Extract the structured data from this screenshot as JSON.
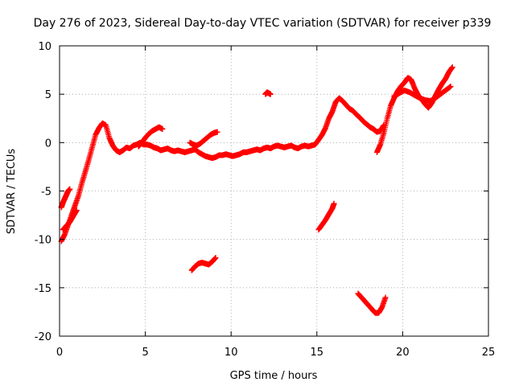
{
  "chart_data": {
    "type": "scatter",
    "title": "Day 276 of 2023, Sidereal Day-to-day VTEC variation (SDTVAR) for receiver p339",
    "xlabel": "GPS time / hours",
    "ylabel": "SDTVAR / TECUs",
    "xlim": [
      0,
      25
    ],
    "ylim": [
      -20,
      10
    ],
    "xticks": [
      0,
      5,
      10,
      15,
      20,
      25
    ],
    "yticks": [
      -20,
      -15,
      -10,
      -5,
      0,
      5,
      10
    ],
    "grid": true,
    "marker": "plus",
    "color": "#ff0000",
    "series": [
      {
        "name": "main-trace",
        "x": [
          0.1,
          0.3,
          0.5,
          0.7,
          0.9,
          1.1,
          1.3,
          1.5,
          1.7,
          1.9,
          2.1,
          2.3,
          2.5,
          2.7,
          2.9,
          3.1,
          3.3,
          3.5,
          3.7,
          3.9,
          4.1,
          4.3,
          4.5,
          4.7,
          4.9,
          5.1,
          5.3,
          5.5,
          5.7,
          5.9,
          6.1,
          6.3,
          6.5,
          6.7,
          6.9,
          7.1,
          7.3,
          7.5,
          7.7,
          7.9,
          8.1,
          8.3,
          8.5,
          8.7,
          8.9,
          9.1,
          9.3,
          9.5,
          9.7,
          9.9,
          10.1,
          10.3,
          10.5,
          10.7,
          10.9,
          11.1,
          11.3,
          11.5,
          11.7,
          11.9,
          12.1,
          12.3,
          12.5,
          12.7,
          12.9,
          13.1,
          13.3,
          13.5,
          13.7,
          13.9,
          14.1,
          14.3,
          14.5,
          14.7,
          14.9,
          15.1,
          15.3,
          15.5,
          15.7,
          15.9,
          16.1,
          16.3,
          16.5,
          16.7,
          16.9,
          17.1,
          17.3,
          17.5,
          17.7,
          17.9,
          18.1,
          18.3,
          18.5,
          18.7,
          18.9
        ],
        "y": [
          -10.2,
          -9.5,
          -8.5,
          -7.5,
          -6.5,
          -5.5,
          -4.2,
          -3.0,
          -1.8,
          -0.5,
          0.8,
          1.5,
          2.0,
          1.8,
          0.5,
          -0.3,
          -0.8,
          -1.0,
          -0.8,
          -0.5,
          -0.6,
          -0.3,
          -0.2,
          0.0,
          -0.2,
          -0.2,
          -0.3,
          -0.5,
          -0.6,
          -0.8,
          -0.7,
          -0.6,
          -0.8,
          -0.9,
          -0.8,
          -0.9,
          -1.0,
          -0.9,
          -0.8,
          -0.7,
          -1.0,
          -1.2,
          -1.4,
          -1.5,
          -1.6,
          -1.5,
          -1.3,
          -1.3,
          -1.2,
          -1.3,
          -1.4,
          -1.3,
          -1.2,
          -1.0,
          -1.0,
          -0.9,
          -0.8,
          -0.7,
          -0.8,
          -0.6,
          -0.5,
          -0.6,
          -0.4,
          -0.3,
          -0.4,
          -0.5,
          -0.4,
          -0.3,
          -0.5,
          -0.6,
          -0.4,
          -0.3,
          -0.4,
          -0.3,
          -0.2,
          0.3,
          0.8,
          1.5,
          2.5,
          3.2,
          4.2,
          4.6,
          4.3,
          3.9,
          3.5,
          3.3,
          2.9,
          2.6,
          2.2,
          1.9,
          1.6,
          1.4,
          1.1,
          1.2,
          1.8
        ]
      },
      {
        "name": "late-trace",
        "x": [
          18.5,
          18.7,
          18.9,
          19.1,
          19.3,
          19.5,
          19.7,
          19.9,
          20.1,
          20.3,
          20.5,
          20.7,
          20.9,
          21.1,
          21.3,
          21.5,
          21.7,
          21.9,
          22.1,
          22.3,
          22.5,
          22.7,
          22.9
        ],
        "y": [
          -1.0,
          -0.2,
          1.0,
          2.5,
          3.8,
          4.6,
          5.3,
          5.8,
          6.2,
          6.7,
          6.5,
          5.6,
          4.9,
          4.5,
          4.0,
          3.6,
          4.1,
          4.8,
          5.5,
          6.1,
          6.6,
          7.3,
          7.8
        ]
      },
      {
        "name": "parallel-band",
        "x": [
          19.5,
          19.8,
          20.1,
          20.4,
          20.7,
          21.0,
          21.3,
          21.6,
          21.9,
          22.2,
          22.5,
          22.8
        ],
        "y": [
          4.8,
          5.1,
          5.4,
          5.2,
          4.9,
          4.6,
          4.4,
          4.3,
          4.6,
          5.0,
          5.4,
          5.8
        ]
      },
      {
        "name": "hump-5-6h",
        "x": [
          4.6,
          4.8,
          5.0,
          5.2,
          5.4,
          5.6,
          5.8,
          6.0
        ],
        "y": [
          -0.4,
          0.0,
          0.5,
          0.9,
          1.2,
          1.4,
          1.6,
          1.4
        ]
      },
      {
        "name": "segment-8-9h",
        "x": [
          7.6,
          7.8,
          8.0,
          8.2,
          8.4,
          8.6,
          8.8,
          9.0,
          9.2
        ],
        "y": [
          0.0,
          -0.2,
          -0.3,
          -0.1,
          0.2,
          0.5,
          0.8,
          1.0,
          1.1
        ]
      },
      {
        "name": "early-trace-a",
        "x": [
          0.1,
          0.2,
          0.3,
          0.4,
          0.5,
          0.6
        ],
        "y": [
          -6.7,
          -6.2,
          -5.8,
          -5.4,
          -5.0,
          -4.8
        ]
      },
      {
        "name": "early-trace-b",
        "x": [
          0.2,
          0.4,
          0.6,
          0.8,
          1.0
        ],
        "y": [
          -9.0,
          -8.6,
          -8.2,
          -7.6,
          -7.0
        ]
      },
      {
        "name": "point-12h",
        "x": [
          12.0,
          12.1,
          12.2,
          12.3
        ],
        "y": [
          5.0,
          5.2,
          5.1,
          5.0
        ]
      },
      {
        "name": "cluster-8-9h",
        "x": [
          7.7,
          7.9,
          8.1,
          8.3,
          8.5,
          8.7,
          8.9,
          9.1
        ],
        "y": [
          -13.2,
          -12.8,
          -12.5,
          -12.4,
          -12.5,
          -12.6,
          -12.3,
          -11.9
        ]
      },
      {
        "name": "cluster-15-16h",
        "x": [
          15.1,
          15.3,
          15.5,
          15.7,
          15.9,
          16.0
        ],
        "y": [
          -9.0,
          -8.5,
          -8.0,
          -7.4,
          -6.8,
          -6.3
        ]
      },
      {
        "name": "cluster-17-19h",
        "x": [
          17.4,
          17.6,
          17.8,
          18.0,
          18.2,
          18.4,
          18.6,
          18.8,
          19.0
        ],
        "y": [
          -15.6,
          -16.0,
          -16.4,
          -16.8,
          -17.2,
          -17.6,
          -17.6,
          -17.0,
          -16.0
        ]
      }
    ]
  }
}
